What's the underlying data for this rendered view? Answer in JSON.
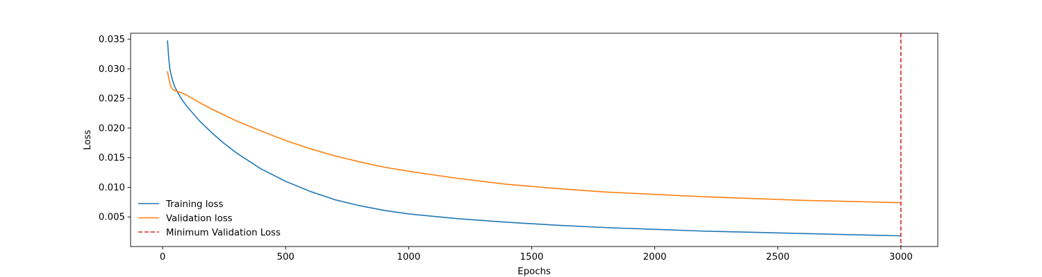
{
  "chart_data": {
    "type": "line",
    "xlabel": "Epochs",
    "ylabel": "Loss",
    "xlim": [
      -130,
      3150
    ],
    "ylim": [
      0.0,
      0.036
    ],
    "xticks": [
      0,
      500,
      1000,
      1500,
      2000,
      2500,
      3000
    ],
    "yticks": [
      0.005,
      0.01,
      0.015,
      0.02,
      0.025,
      0.03,
      0.035
    ],
    "ytick_labels": [
      "0.005",
      "0.010",
      "0.015",
      "0.020",
      "0.025",
      "0.030",
      "0.035"
    ],
    "xtick_labels": [
      "0",
      "500",
      "1000",
      "1500",
      "2000",
      "2500",
      "3000"
    ],
    "grid": false,
    "legend_position": "lower-left",
    "legend_frame": false,
    "series": [
      {
        "name": "Training loss",
        "color": "#1f77b4",
        "style": "solid",
        "x": [
          20,
          25,
          30,
          40,
          50,
          60,
          80,
          100,
          150,
          200,
          250,
          300,
          400,
          500,
          600,
          700,
          800,
          900,
          1000,
          1200,
          1400,
          1600,
          1800,
          2000,
          2200,
          2400,
          2600,
          2800,
          3000
        ],
        "y": [
          0.0347,
          0.0318,
          0.0298,
          0.0281,
          0.0269,
          0.0261,
          0.0247,
          0.0236,
          0.0212,
          0.0192,
          0.0174,
          0.0158,
          0.0131,
          0.011,
          0.0093,
          0.0079,
          0.0069,
          0.0061,
          0.0055,
          0.0047,
          0.0041,
          0.0036,
          0.0032,
          0.0029,
          0.0026,
          0.0024,
          0.0022,
          0.002,
          0.0018
        ]
      },
      {
        "name": "Validation loss",
        "color": "#ff7f0e",
        "style": "solid",
        "x": [
          20,
          25,
          30,
          35,
          40,
          50,
          60,
          80,
          100,
          150,
          200,
          300,
          400,
          500,
          600,
          700,
          800,
          900,
          1000,
          1200,
          1400,
          1600,
          1800,
          2000,
          2200,
          2400,
          2600,
          2800,
          3000
        ],
        "y": [
          0.0295,
          0.0285,
          0.0275,
          0.0269,
          0.0266,
          0.0263,
          0.0262,
          0.0259,
          0.0255,
          0.0243,
          0.0232,
          0.0212,
          0.0195,
          0.0179,
          0.0165,
          0.0153,
          0.0143,
          0.0134,
          0.0127,
          0.0115,
          0.0105,
          0.0098,
          0.0092,
          0.0088,
          0.0084,
          0.0081,
          0.0078,
          0.0076,
          0.0074
        ]
      }
    ],
    "vlines": [
      {
        "name": "Minimum Validation Loss",
        "x": 3000,
        "color": "#d62728",
        "style": "dashed"
      }
    ]
  }
}
